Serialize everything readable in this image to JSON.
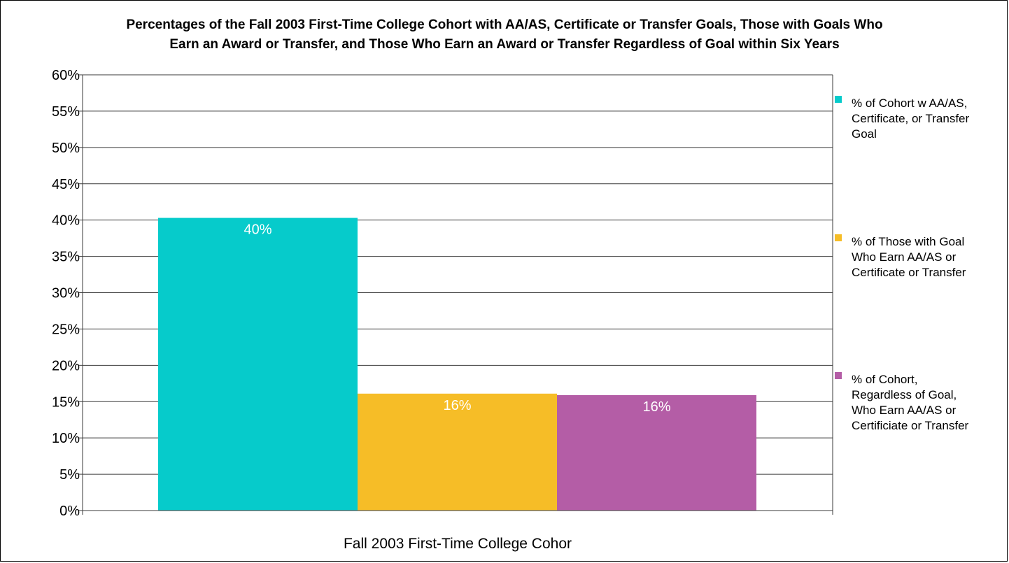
{
  "chart_data": {
    "type": "bar",
    "title_lines": [
      "Percentages of the Fall 2003 First-Time College Cohort with AA/AS, Certificate or Transfer Goals, Those with Goals Who",
      "Earn an Award or Transfer, and Those Who Earn an Award or Transfer Regardless of Goal within Six Years"
    ],
    "categories": [
      "Fall 2003 First-Time College Cohor"
    ],
    "xlabel": "",
    "ylabel": "",
    "ylim": [
      0,
      60
    ],
    "y_ticks": [
      "0%",
      "5%",
      "10%",
      "15%",
      "20%",
      "25%",
      "30%",
      "35%",
      "40%",
      "45%",
      "50%",
      "55%",
      "60%"
    ],
    "y_tick_values": [
      0,
      5,
      10,
      15,
      20,
      25,
      30,
      35,
      40,
      45,
      50,
      55,
      60
    ],
    "grid": true,
    "legend_position": "right",
    "series": [
      {
        "name": "% of Cohort w AA/AS, Certificate, or Transfer Goal",
        "name_lines": [
          "% of Cohort w AA/AS,",
          "Certificate, or Transfer",
          "Goal"
        ],
        "values": [
          40.3
        ],
        "label": "40%",
        "color": "#06CBCB"
      },
      {
        "name": "% of Those with Goal Who Earn AA/AS or Certificate or Transfer",
        "name_lines": [
          "% of Those with Goal",
          "Who Earn AA/AS or",
          "Certificate or Transfer"
        ],
        "values": [
          16.1
        ],
        "label": "16%",
        "color": "#F6BD27"
      },
      {
        "name": "% of Cohort, Regardless of Goal, Who Earn AA/AS or Certificiate or Transfer",
        "name_lines": [
          "% of Cohort,",
          "Regardless of Goal,",
          "Who Earn AA/AS or",
          "Certificiate or Transfer"
        ],
        "values": [
          15.9
        ],
        "label": "16%",
        "color": "#B45DA6"
      }
    ]
  }
}
